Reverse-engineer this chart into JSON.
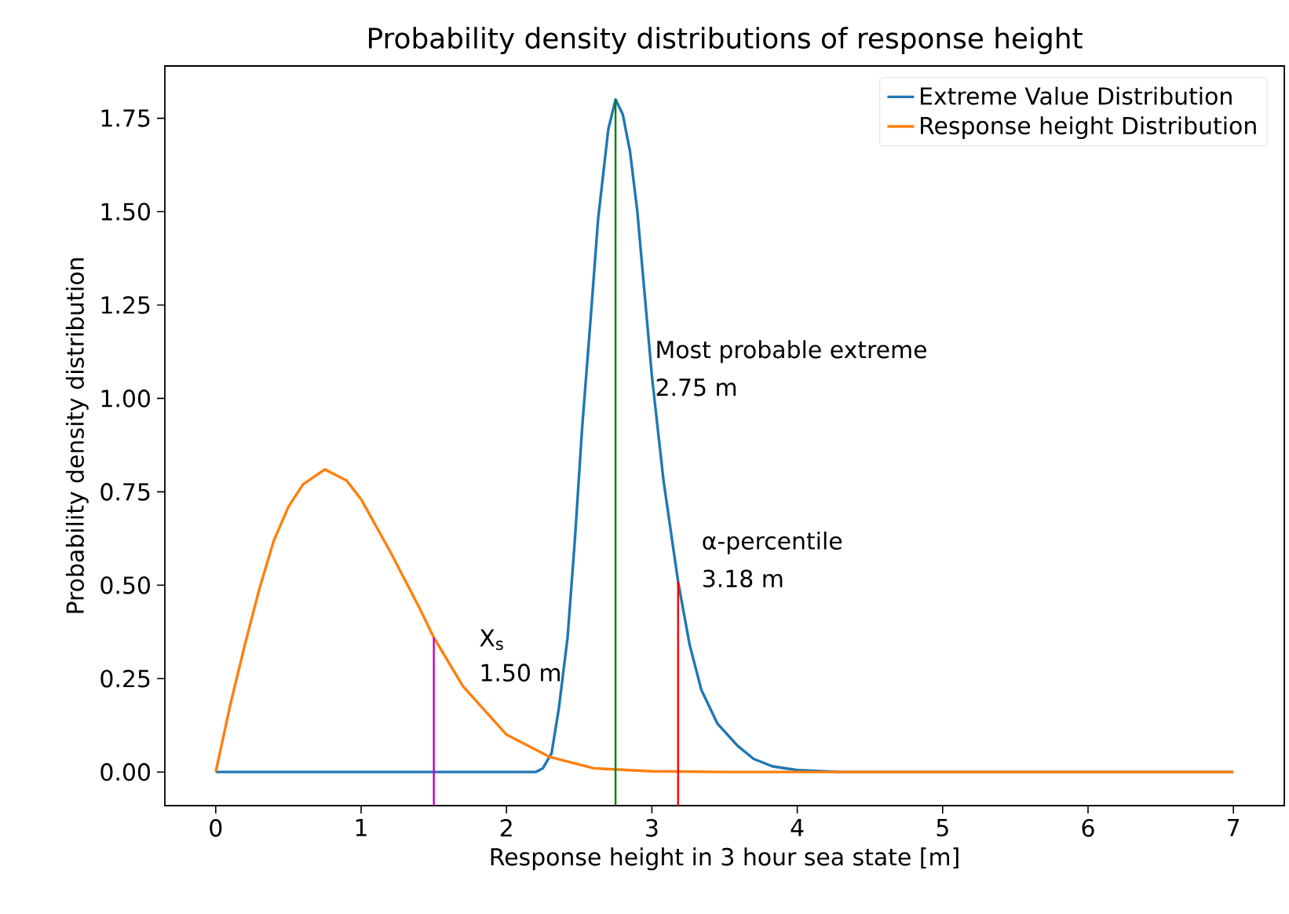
{
  "chart_data": {
    "type": "line",
    "title": "Probability density distributions of response height",
    "xlabel": "Response height in 3 hour sea state [m]",
    "ylabel": "Probability density distribution",
    "xlim": [
      -0.35,
      7.35
    ],
    "ylim": [
      -0.09,
      1.89
    ],
    "xticks": [
      0,
      1,
      2,
      3,
      4,
      5,
      6,
      7
    ],
    "yticks": [
      {
        "value": 0,
        "label": "0.00"
      },
      {
        "value": 0.25,
        "label": "0.25"
      },
      {
        "value": 0.5,
        "label": "0.50"
      },
      {
        "value": 0.75,
        "label": "0.75"
      },
      {
        "value": 1,
        "label": "1.00"
      },
      {
        "value": 1.25,
        "label": "1.25"
      },
      {
        "value": 1.5,
        "label": "1.50"
      },
      {
        "value": 1.75,
        "label": "1.75"
      }
    ],
    "legend": "top right",
    "series": [
      {
        "name": "Extreme Value Distribution",
        "color": "#1f77b4",
        "x": [
          0,
          2.2,
          2.25,
          2.31,
          2.36,
          2.42,
          2.47,
          2.52,
          2.58,
          2.63,
          2.7,
          2.75,
          2.8,
          2.85,
          2.9,
          2.95,
          3.0,
          3.08,
          3.18,
          3.26,
          3.34,
          3.45,
          3.59,
          3.7,
          3.83,
          4.0,
          4.3,
          7
        ],
        "values": [
          0,
          0,
          0.01,
          0.05,
          0.17,
          0.36,
          0.62,
          0.92,
          1.22,
          1.48,
          1.72,
          1.8,
          1.76,
          1.66,
          1.5,
          1.28,
          1.06,
          0.78,
          0.51,
          0.34,
          0.22,
          0.13,
          0.07,
          0.035,
          0.015,
          0.005,
          0,
          0
        ]
      },
      {
        "name": "Response height Distribution",
        "color": "#ff7f0e",
        "x": [
          0,
          0.1,
          0.2,
          0.3,
          0.4,
          0.5,
          0.6,
          0.75,
          0.9,
          1.0,
          1.2,
          1.4,
          1.5,
          1.7,
          2.0,
          2.3,
          2.6,
          3.0,
          3.5,
          7
        ],
        "values": [
          0,
          0.18,
          0.34,
          0.49,
          0.62,
          0.71,
          0.77,
          0.81,
          0.78,
          0.73,
          0.59,
          0.44,
          0.36,
          0.23,
          0.1,
          0.04,
          0.01,
          0.002,
          0,
          0
        ]
      },
      {
        "color": "#bf00bf",
        "x": [
          1.5,
          1.5
        ],
        "values": [
          -0.09,
          0.36
        ]
      },
      {
        "color": "#008000",
        "x": [
          2.75,
          2.75
        ],
        "values": [
          -0.09,
          1.8
        ]
      },
      {
        "color": "#ff0000",
        "x": [
          3.18,
          3.18
        ],
        "values": [
          -0.09,
          0.51
        ]
      }
    ],
    "annotations": [
      "X$_{s}$",
      "1.50 m",
      {
        "text": "Most probable extreme",
        "x": 3.02,
        "y": 1.108
      },
      {
        "text": "2.75 m",
        "x": 3.02,
        "y": 1.007
      },
      "α-percentile",
      "3.18 m"
    ]
  }
}
